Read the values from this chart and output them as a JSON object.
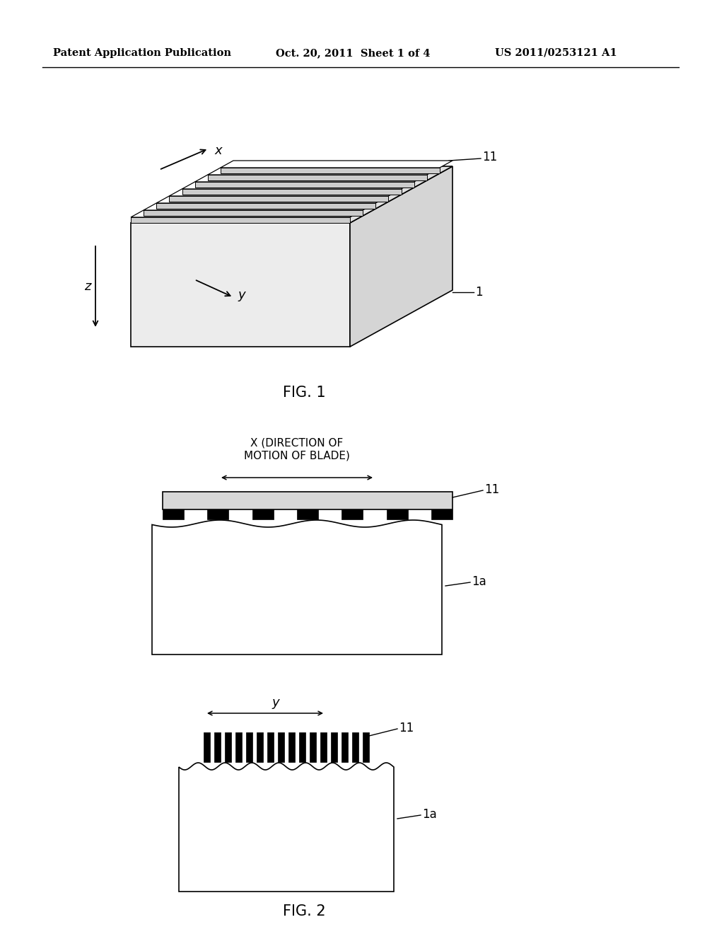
{
  "bg_color": "#ffffff",
  "header_left": "Patent Application Publication",
  "header_mid": "Oct. 20, 2011  Sheet 1 of 4",
  "header_right": "US 2011/0253121 A1",
  "fig1_label": "FIG. 1",
  "fig2_label": "FIG. 2",
  "label_1": "1",
  "label_11_fig1": "11",
  "label_11_top": "11",
  "label_11_bot": "11",
  "label_1a_top": "1a",
  "label_1a_bot": "1a",
  "label_x": "x",
  "label_y": "y",
  "label_z": "z",
  "label_y2": "y",
  "label_x_dir": "X (DIRECTION OF\nMOTION OF BLADE)"
}
